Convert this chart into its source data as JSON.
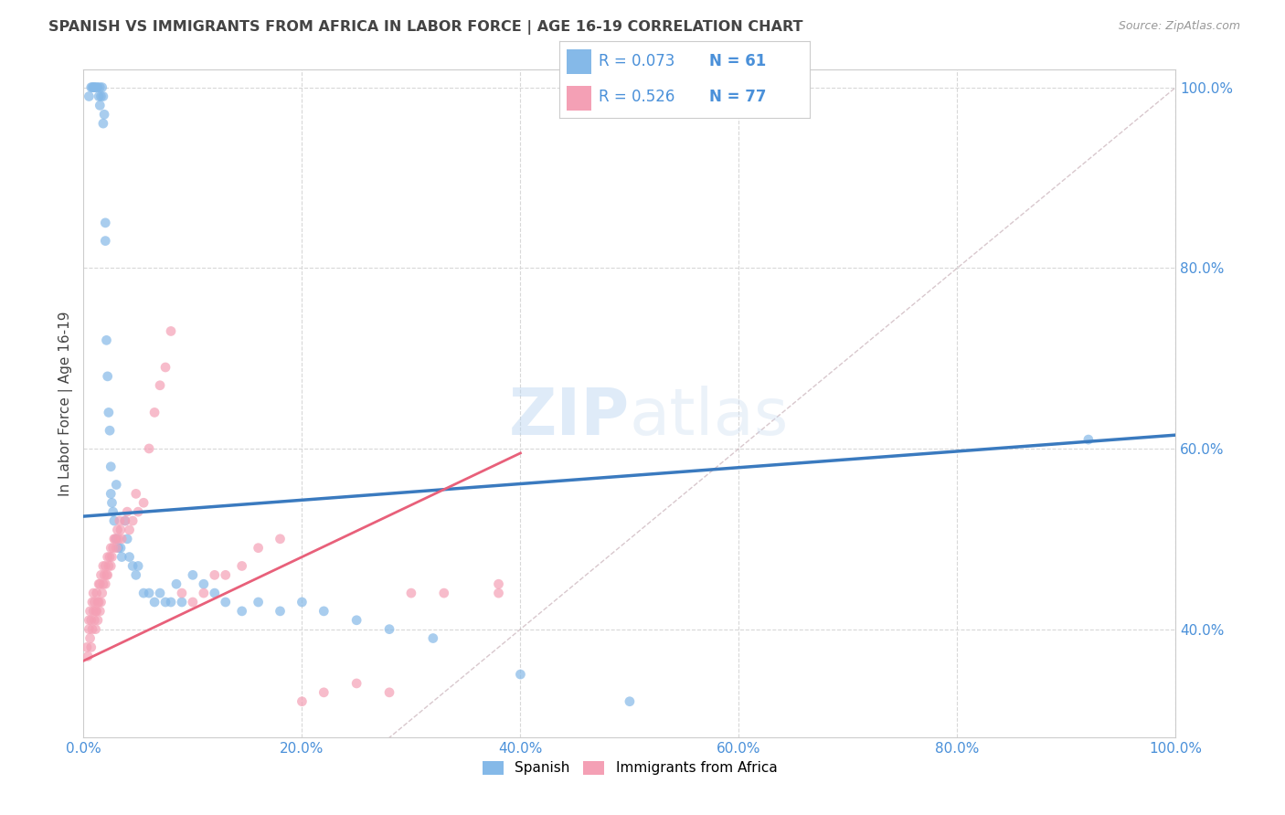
{
  "title": "SPANISH VS IMMIGRANTS FROM AFRICA IN LABOR FORCE | AGE 16-19 CORRELATION CHART",
  "source": "Source: ZipAtlas.com",
  "ylabel": "In Labor Force | Age 16-19",
  "xlim": [
    0.0,
    1.0
  ],
  "ylim": [
    0.28,
    1.02
  ],
  "watermark_text": "ZIPatlas",
  "legend_R_spanish": "0.073",
  "legend_N_spanish": "61",
  "legend_R_africa": "0.526",
  "legend_N_africa": "77",
  "spanish_color": "#85b9e8",
  "africa_color": "#f4a0b5",
  "spanish_line_color": "#3a7abf",
  "africa_line_color": "#e8607a",
  "diagonal_color": "#c8b0b8",
  "background_color": "#ffffff",
  "grid_color": "#d8d8d8",
  "axis_label_color": "#4a90d9",
  "title_color": "#444444",
  "spanish_line_x0": 0.0,
  "spanish_line_y0": 0.525,
  "spanish_line_x1": 1.0,
  "spanish_line_y1": 0.615,
  "africa_line_x0": 0.0,
  "africa_line_y0": 0.365,
  "africa_line_x1": 0.4,
  "africa_line_y1": 0.595,
  "sp_x": [
    0.005,
    0.007,
    0.008,
    0.009,
    0.01,
    0.01,
    0.012,
    0.013,
    0.014,
    0.015,
    0.015,
    0.016,
    0.017,
    0.018,
    0.018,
    0.019,
    0.02,
    0.02,
    0.021,
    0.022,
    0.023,
    0.024,
    0.025,
    0.025,
    0.026,
    0.027,
    0.028,
    0.03,
    0.03,
    0.032,
    0.034,
    0.035,
    0.038,
    0.04,
    0.042,
    0.045,
    0.048,
    0.05,
    0.055,
    0.06,
    0.065,
    0.07,
    0.075,
    0.08,
    0.085,
    0.09,
    0.1,
    0.11,
    0.12,
    0.13,
    0.145,
    0.16,
    0.18,
    0.2,
    0.22,
    0.25,
    0.28,
    0.32,
    0.4,
    0.5,
    0.92
  ],
  "sp_y": [
    0.99,
    1.0,
    1.0,
    1.0,
    1.0,
    1.0,
    1.0,
    1.0,
    0.99,
    1.0,
    0.98,
    0.99,
    1.0,
    0.99,
    0.96,
    0.97,
    0.85,
    0.83,
    0.72,
    0.68,
    0.64,
    0.62,
    0.58,
    0.55,
    0.54,
    0.53,
    0.52,
    0.56,
    0.5,
    0.49,
    0.49,
    0.48,
    0.52,
    0.5,
    0.48,
    0.47,
    0.46,
    0.47,
    0.44,
    0.44,
    0.43,
    0.44,
    0.43,
    0.43,
    0.45,
    0.43,
    0.46,
    0.45,
    0.44,
    0.43,
    0.42,
    0.43,
    0.42,
    0.43,
    0.42,
    0.41,
    0.4,
    0.39,
    0.35,
    0.32,
    0.61
  ],
  "af_x": [
    0.003,
    0.004,
    0.005,
    0.005,
    0.006,
    0.006,
    0.007,
    0.007,
    0.008,
    0.008,
    0.009,
    0.009,
    0.01,
    0.01,
    0.011,
    0.011,
    0.012,
    0.012,
    0.013,
    0.013,
    0.014,
    0.014,
    0.015,
    0.015,
    0.016,
    0.016,
    0.017,
    0.018,
    0.018,
    0.019,
    0.02,
    0.02,
    0.021,
    0.022,
    0.022,
    0.023,
    0.024,
    0.025,
    0.025,
    0.026,
    0.027,
    0.028,
    0.029,
    0.03,
    0.031,
    0.032,
    0.033,
    0.034,
    0.035,
    0.038,
    0.04,
    0.042,
    0.045,
    0.048,
    0.05,
    0.055,
    0.06,
    0.065,
    0.07,
    0.075,
    0.08,
    0.09,
    0.1,
    0.11,
    0.12,
    0.13,
    0.145,
    0.16,
    0.18,
    0.2,
    0.22,
    0.25,
    0.28,
    0.3,
    0.33,
    0.38,
    0.38
  ],
  "af_y": [
    0.38,
    0.37,
    0.4,
    0.41,
    0.39,
    0.42,
    0.38,
    0.41,
    0.4,
    0.43,
    0.42,
    0.44,
    0.41,
    0.43,
    0.4,
    0.42,
    0.42,
    0.44,
    0.41,
    0.43,
    0.43,
    0.45,
    0.42,
    0.45,
    0.43,
    0.46,
    0.44,
    0.45,
    0.47,
    0.46,
    0.45,
    0.47,
    0.46,
    0.46,
    0.48,
    0.47,
    0.48,
    0.47,
    0.49,
    0.48,
    0.49,
    0.5,
    0.5,
    0.49,
    0.51,
    0.5,
    0.52,
    0.51,
    0.5,
    0.52,
    0.53,
    0.51,
    0.52,
    0.55,
    0.53,
    0.54,
    0.6,
    0.64,
    0.67,
    0.69,
    0.73,
    0.44,
    0.43,
    0.44,
    0.46,
    0.46,
    0.47,
    0.49,
    0.5,
    0.32,
    0.33,
    0.34,
    0.33,
    0.44,
    0.44,
    0.44,
    0.45
  ]
}
